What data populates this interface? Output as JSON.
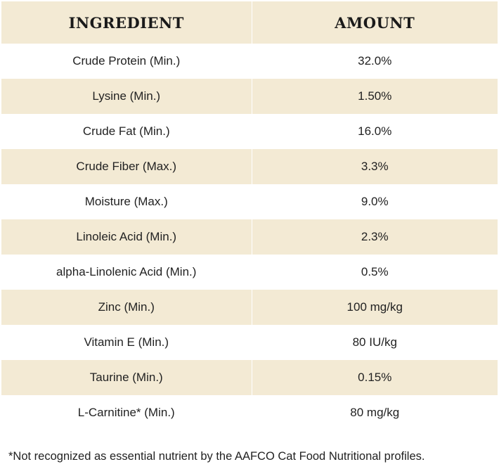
{
  "header": {
    "ingredient": "INGREDIENT",
    "amount": "AMOUNT"
  },
  "rows": [
    {
      "ingredient": "Crude Protein (Min.)",
      "amount": "32.0%"
    },
    {
      "ingredient": "Lysine (Min.)",
      "amount": "1.50%"
    },
    {
      "ingredient": "Crude Fat (Min.)",
      "amount": "16.0%"
    },
    {
      "ingredient": "Crude Fiber (Max.)",
      "amount": "3.3%"
    },
    {
      "ingredient": "Moisture (Max.)",
      "amount": "9.0%"
    },
    {
      "ingredient": "Linoleic Acid (Min.)",
      "amount": "2.3%"
    },
    {
      "ingredient": "alpha-Linolenic Acid (Min.)",
      "amount": "0.5%"
    },
    {
      "ingredient": "Zinc (Min.)",
      "amount": "100 mg/kg"
    },
    {
      "ingredient": "Vitamin E (Min.)",
      "amount": "80 IU/kg"
    },
    {
      "ingredient": "Taurine (Min.)",
      "amount": "0.15%"
    },
    {
      "ingredient": "L-Carnitine* (Min.)",
      "amount": "80 mg/kg"
    }
  ],
  "footnote": "*Not recognized as essential nutrient by the AAFCO Cat Food Nutritional profiles.",
  "colors": {
    "shaded_row": "#f3ead4",
    "plain_row": "#ffffff"
  }
}
